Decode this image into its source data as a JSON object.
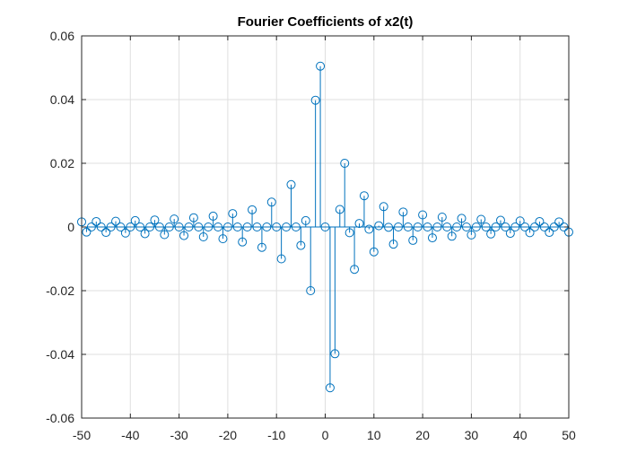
{
  "chart_data": {
    "type": "stem",
    "title": "Fourier Coefficients of x2(t)",
    "xlabel": "",
    "ylabel": "",
    "xlim": [
      -50,
      50
    ],
    "ylim": [
      -0.06,
      0.06
    ],
    "xticks": [
      -50,
      -40,
      -30,
      -20,
      -10,
      0,
      10,
      20,
      30,
      40,
      50
    ],
    "yticks": [
      -0.06,
      -0.04,
      -0.02,
      0,
      0.02,
      0.04,
      0.06
    ],
    "ytick_labels": [
      "-0.06",
      "-0.04",
      "-0.02",
      "0",
      "0.02",
      "0.04",
      "0.06"
    ],
    "grid": true,
    "series_color": "#0072BD",
    "x": [
      -50,
      -49,
      -48,
      -47,
      -46,
      -45,
      -44,
      -43,
      -42,
      -41,
      -40,
      -39,
      -38,
      -37,
      -36,
      -35,
      -34,
      -33,
      -32,
      -31,
      -30,
      -29,
      -28,
      -27,
      -26,
      -25,
      -24,
      -23,
      -22,
      -21,
      -20,
      -19,
      -18,
      -17,
      -16,
      -15,
      -14,
      -13,
      -12,
      -11,
      -10,
      -9,
      -8,
      -7,
      -6,
      -5,
      -4,
      -3,
      -2,
      -1,
      0,
      1,
      2,
      3,
      4,
      5,
      6,
      7,
      8,
      9,
      10,
      11,
      12,
      13,
      14,
      15,
      16,
      17,
      18,
      19,
      20,
      21,
      22,
      23,
      24,
      25,
      26,
      27,
      28,
      29,
      30,
      31,
      32,
      33,
      34,
      35,
      36,
      37,
      38,
      39,
      40,
      41,
      42,
      43,
      44,
      45,
      46,
      47,
      48,
      49,
      50
    ],
    "y": [
      0.0016,
      -0.0016,
      0,
      0.0017,
      0,
      -0.0017,
      0,
      0.0018,
      0,
      -0.0019,
      0,
      0.002,
      0,
      -0.0021,
      0,
      0.0022,
      0,
      -0.0024,
      0,
      0.0025,
      0,
      -0.0027,
      0,
      0.0029,
      0,
      -0.0031,
      0,
      0.0034,
      0,
      -0.0037,
      0,
      0.0042,
      0,
      -0.0047,
      0,
      0.0054,
      0,
      -0.0064,
      0,
      0.0078,
      0,
      -0.01,
      0,
      0.0133,
      0,
      -0.0058,
      0.002,
      -0.02,
      0.0398,
      0.0505,
      0,
      -0.0505,
      -0.0398,
      0.0055,
      0.02,
      -0.0018,
      -0.0133,
      0.0011,
      0.0098,
      -0.0007,
      -0.0078,
      0.0004,
      0.0064,
      -0.0001,
      -0.0054,
      0,
      0.0047,
      0,
      -0.0042,
      0,
      0.0038,
      0,
      -0.0034,
      0,
      0.0031,
      0,
      -0.0029,
      0,
      0.0027,
      0,
      -0.0025,
      0,
      0.0024,
      0,
      -0.0022,
      0,
      0.0021,
      0,
      -0.002,
      0,
      0.0019,
      0,
      -0.0018,
      0,
      0.0017,
      0,
      -0.0017,
      0,
      0.0016,
      0,
      -0.0016
    ]
  }
}
